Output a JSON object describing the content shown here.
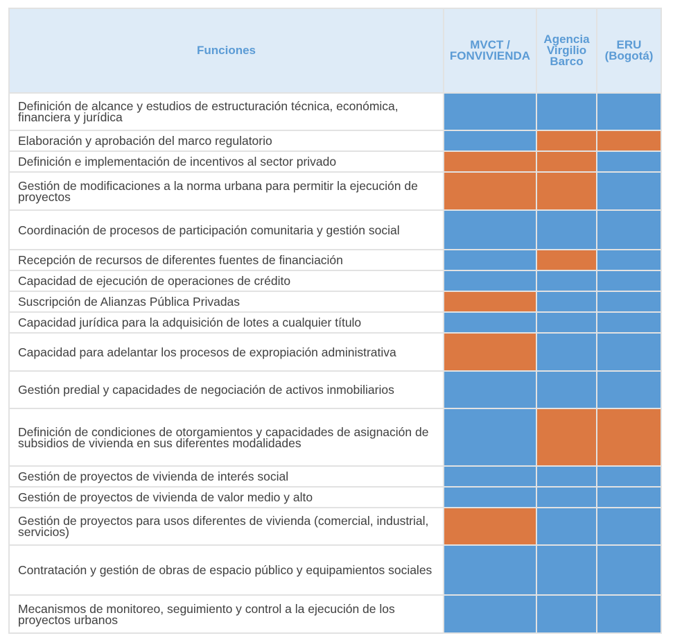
{
  "colors": {
    "blue": "#5b9bd5",
    "orange": "#dc7942",
    "header_bg": "#deebf7",
    "header_text": "#5b9bd5"
  },
  "table": {
    "headers": [
      "Funciones",
      "MVCT / FONVIVIENDA",
      "Agencia Virgilio Barco",
      "ERU (Bogotá)"
    ],
    "rows": [
      {
        "label": "Definición de alcance y estudios de estructuración técnica, económica, financiera y jurídica",
        "cells": [
          "blue",
          "blue",
          "blue"
        ]
      },
      {
        "label": "Elaboración y aprobación del marco regulatorio",
        "cells": [
          "blue",
          "orange",
          "orange"
        ]
      },
      {
        "label": "Definición e implementación de incentivos al sector privado",
        "cells": [
          "orange",
          "orange",
          "blue"
        ]
      },
      {
        "label": "Gestión de modificaciones a la norma urbana para permitir la ejecución de proyectos",
        "cells": [
          "orange",
          "orange",
          "blue"
        ]
      },
      {
        "label": "Coordinación de procesos de participación comunitaria y gestión social",
        "cells": [
          "blue",
          "blue",
          "blue"
        ]
      },
      {
        "label": "Recepción de recursos de diferentes fuentes de financiación",
        "cells": [
          "blue",
          "orange",
          "blue"
        ]
      },
      {
        "label": "Capacidad de ejecución de operaciones de crédito",
        "cells": [
          "blue",
          "blue",
          "blue"
        ]
      },
      {
        "label": "Suscripción de Alianzas Pública Privadas",
        "cells": [
          "orange",
          "blue",
          "blue"
        ]
      },
      {
        "label": "Capacidad jurídica para la adquisición de lotes a cualquier título",
        "cells": [
          "blue",
          "blue",
          "blue"
        ]
      },
      {
        "label": "Capacidad para adelantar los procesos de expropiación administrativa",
        "cells": [
          "orange",
          "blue",
          "blue"
        ]
      },
      {
        "label": "Gestión predial y capacidades de negociación de activos inmobiliarios",
        "cells": [
          "blue",
          "blue",
          "blue"
        ]
      },
      {
        "label": "Definición de condiciones de otorgamientos y capacidades de asignación de subsidios de vivienda en sus diferentes modalidades",
        "cells": [
          "blue",
          "orange",
          "orange"
        ]
      },
      {
        "label": "Gestión de proyectos de vivienda de interés social",
        "cells": [
          "blue",
          "blue",
          "blue"
        ]
      },
      {
        "label": "Gestión de proyectos de vivienda de valor medio y alto",
        "cells": [
          "blue",
          "blue",
          "blue"
        ]
      },
      {
        "label": "Gestión de proyectos para usos diferentes de vivienda (comercial, industrial, servicios)",
        "cells": [
          "orange",
          "blue",
          "blue"
        ]
      },
      {
        "label": "Contratación y gestión de obras de espacio público y equipamientos sociales",
        "cells": [
          "blue",
          "blue",
          "blue"
        ]
      },
      {
        "label": "Mecanismos de monitoreo, seguimiento y control a la ejecución de los proyectos urbanos",
        "cells": [
          "blue",
          "blue",
          "blue"
        ]
      }
    ]
  }
}
